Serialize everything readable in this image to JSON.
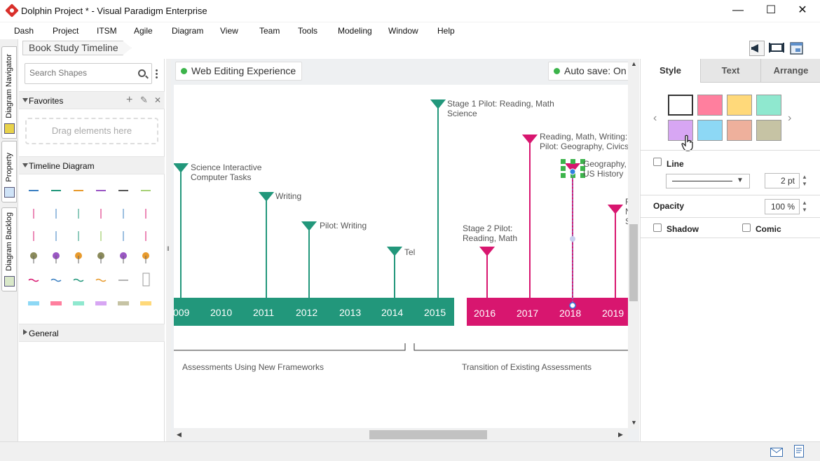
{
  "window": {
    "title": "Dolphin Project * - Visual Paradigm Enterprise",
    "minimize": "—",
    "maximize": "☐",
    "close": "✕"
  },
  "menu": [
    "Dash",
    "Project",
    "ITSM",
    "Agile",
    "Diagram",
    "View",
    "Team",
    "Tools",
    "Modeling",
    "Window",
    "Help"
  ],
  "left_tabs": [
    "Diagram Navigator",
    "Property",
    "Diagram Backlog"
  ],
  "breadcrumb": "Book Study Timeline",
  "shapes_panel": {
    "search_placeholder": "Search Shapes",
    "favorites": "Favorites",
    "drag_hint": "Drag elements here",
    "timeline_section": "Timeline Diagram",
    "general_section": "General"
  },
  "canvas": {
    "web_editing": "Web Editing Experience",
    "auto_save": "Auto save: On",
    "years_left": [
      "009",
      "2010",
      "2011",
      "2012",
      "2013",
      "2014",
      "2015"
    ],
    "years_right": [
      "2016",
      "2017",
      "2018",
      "2019"
    ],
    "events": [
      {
        "text1": "Science Interactive",
        "text2": "Computer Tasks"
      },
      {
        "text1": "Writing",
        "text2": ""
      },
      {
        "text1": "Pilot: Writing",
        "text2": ""
      },
      {
        "text1": "Tel",
        "text2": ""
      },
      {
        "text1": "Stage 1 Pilot: Reading, Math",
        "text2": "Science"
      },
      {
        "text1": "Stage 2 Pilot:",
        "text2": "Reading, Math"
      },
      {
        "text1": "Reading, Math, Writing:",
        "text2": "Pilot: Geography, Civics"
      },
      {
        "text1": "Geography,",
        "text2": "US History"
      },
      {
        "text1": "F",
        "text2": "N"
      }
    ],
    "extra_text": "S",
    "phase_left": "Assessments Using New Frameworks",
    "phase_right": "Transition of Existing Assessments",
    "colors": {
      "teal": "#22977b",
      "pink": "#d8166f"
    }
  },
  "props": {
    "tabs": [
      "Style",
      "Text",
      "Arrange"
    ],
    "swatches": [
      "#ffffff",
      "#ff7f9e",
      "#ffd97a",
      "#8fe8cf",
      "#d7a6f3",
      "#8dd8f5",
      "#eeb09c",
      "#c6c3a4"
    ],
    "line_label": "Line",
    "line_width": "2 pt",
    "opacity_label": "Opacity",
    "opacity_value": "100 %",
    "shadow_label": "Shadow",
    "comic_label": "Comic"
  }
}
